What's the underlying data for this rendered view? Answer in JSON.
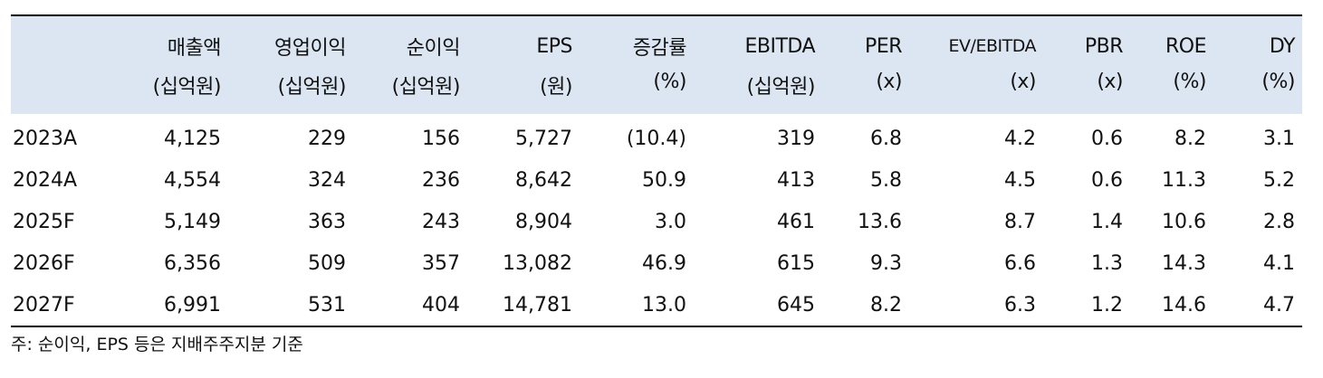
{
  "header": {
    "row1": [
      "",
      "매출액",
      "영업이익",
      "순이익",
      "EPS",
      "증감률",
      "EBITDA",
      "PER",
      "EV/EBITDA",
      "PBR",
      "ROE",
      "DY"
    ],
    "row2": [
      "",
      "(십억원)",
      "(십억원)",
      "(십억원)",
      "(원)",
      "(%)",
      "(십억원)",
      "(x)",
      "(x)",
      "(x)",
      "(%)",
      "(%)"
    ]
  },
  "rows": [
    [
      "2023A",
      "4,125",
      "229",
      "156",
      "5,727",
      "(10.4)",
      "319",
      "6.8",
      "4.2",
      "0.6",
      "8.2",
      "3.1"
    ],
    [
      "2024A",
      "4,554",
      "324",
      "236",
      "8,642",
      "50.9",
      "413",
      "5.8",
      "4.5",
      "0.6",
      "11.3",
      "5.2"
    ],
    [
      "2025F",
      "5,149",
      "363",
      "243",
      "8,904",
      "3.0",
      "461",
      "13.6",
      "8.7",
      "1.4",
      "10.6",
      "2.8"
    ],
    [
      "2026F",
      "6,356",
      "509",
      "357",
      "13,082",
      "46.9",
      "615",
      "9.3",
      "6.6",
      "1.3",
      "14.3",
      "4.1"
    ],
    [
      "2027F",
      "6,991",
      "531",
      "404",
      "14,781",
      "13.0",
      "645",
      "8.2",
      "6.3",
      "1.2",
      "14.6",
      "4.7"
    ]
  ],
  "note": "주: 순이익, EPS 등은 지배주주지분 기준"
}
